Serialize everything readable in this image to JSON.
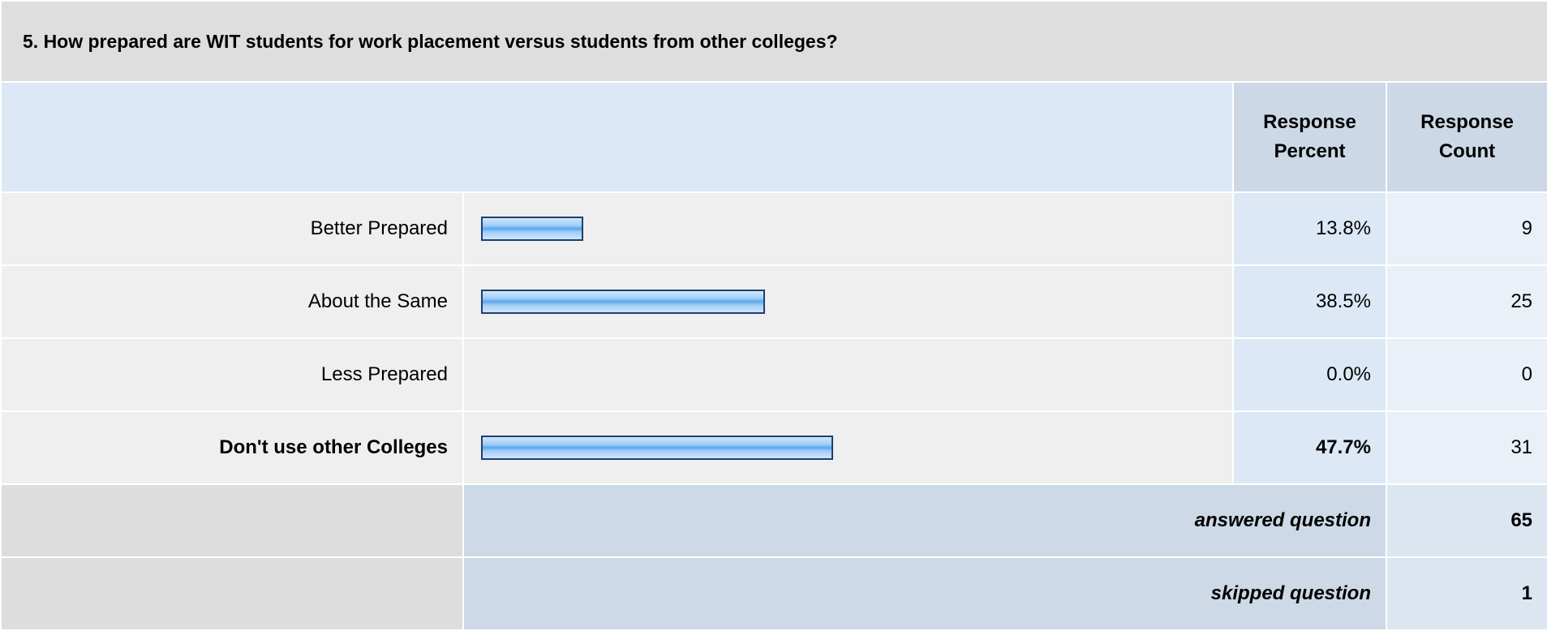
{
  "question": "5. How prepared are WIT students for work placement versus students from other colleges?",
  "header": {
    "percent": "Response Percent",
    "count": "Response Count"
  },
  "rows": [
    {
      "label": "Better Prepared",
      "percent": 13.8,
      "percent_label": "13.8%",
      "count": 9,
      "bold": false
    },
    {
      "label": "About the Same",
      "percent": 38.5,
      "percent_label": "38.5%",
      "count": 25,
      "bold": false
    },
    {
      "label": "Less Prepared",
      "percent": 0.0,
      "percent_label": "0.0%",
      "count": 0,
      "bold": false
    },
    {
      "label": "Don't use other Colleges",
      "percent": 47.7,
      "percent_label": "47.7%",
      "count": 31,
      "bold": true
    }
  ],
  "summary": [
    {
      "label": "answered question",
      "count": 65
    },
    {
      "label": "skipped question",
      "count": 1
    }
  ]
}
